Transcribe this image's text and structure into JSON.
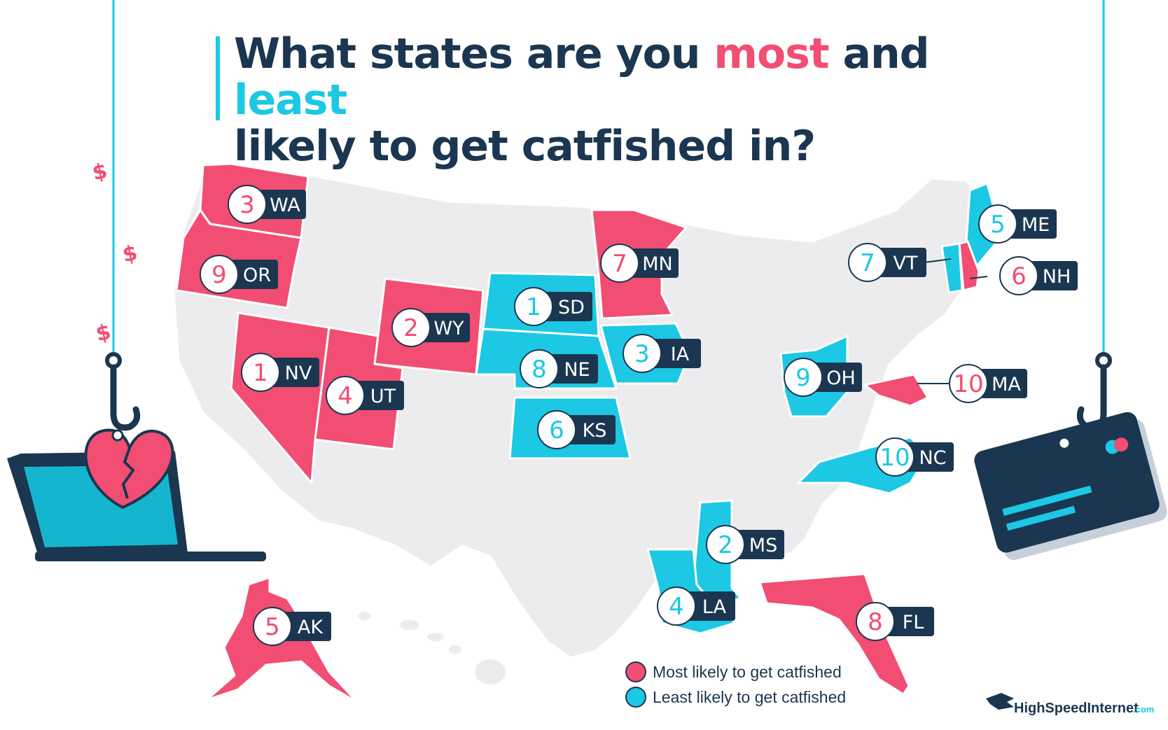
{
  "title": {
    "part1": "What states are you ",
    "most": "most",
    "part2": " and ",
    "least": "least",
    "part3": "likely to get catfished in?"
  },
  "colors": {
    "most": "#f24d72",
    "least": "#1cc8e3",
    "neutral": "#ececee",
    "dark": "#1b3650"
  },
  "legend": {
    "most_label": "Most likely to get catfished",
    "least_label": "Least likely to get catfished"
  },
  "states": [
    {
      "abbr": "WA",
      "rank": "3",
      "category": "most"
    },
    {
      "abbr": "OR",
      "rank": "9",
      "category": "most"
    },
    {
      "abbr": "NV",
      "rank": "1",
      "category": "most"
    },
    {
      "abbr": "UT",
      "rank": "4",
      "category": "most"
    },
    {
      "abbr": "WY",
      "rank": "2",
      "category": "most"
    },
    {
      "abbr": "SD",
      "rank": "1",
      "category": "least"
    },
    {
      "abbr": "NE",
      "rank": "8",
      "category": "least"
    },
    {
      "abbr": "KS",
      "rank": "6",
      "category": "least"
    },
    {
      "abbr": "MN",
      "rank": "7",
      "category": "most"
    },
    {
      "abbr": "IA",
      "rank": "3",
      "category": "least"
    },
    {
      "abbr": "OH",
      "rank": "9",
      "category": "least"
    },
    {
      "abbr": "MA",
      "rank": "10",
      "category": "most"
    },
    {
      "abbr": "NC",
      "rank": "10",
      "category": "least"
    },
    {
      "abbr": "MS",
      "rank": "2",
      "category": "least"
    },
    {
      "abbr": "LA",
      "rank": "4",
      "category": "least"
    },
    {
      "abbr": "FL",
      "rank": "8",
      "category": "most"
    },
    {
      "abbr": "AK",
      "rank": "5",
      "category": "most"
    },
    {
      "abbr": "ME",
      "rank": "5",
      "category": "least"
    },
    {
      "abbr": "VT",
      "rank": "7",
      "category": "least"
    },
    {
      "abbr": "NH",
      "rank": "6",
      "category": "most"
    }
  ],
  "logo": {
    "brand": "HighSpeedInternet",
    "suffix": ".com"
  },
  "decorations": {
    "dollar_sign": "$"
  }
}
